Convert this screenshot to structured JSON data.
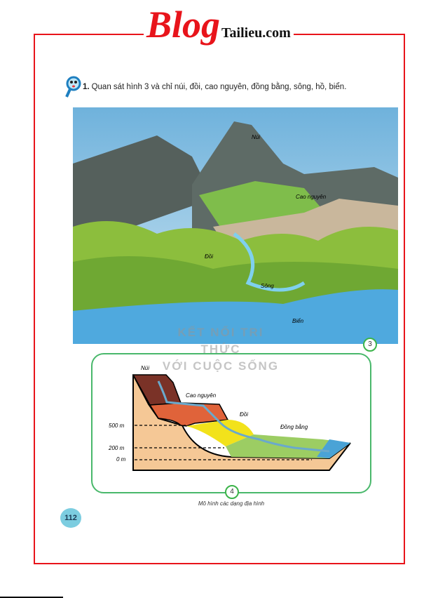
{
  "logo": {
    "blog": "Blog",
    "site": "Tailieu.com"
  },
  "question": {
    "number": "1.",
    "text": "Quan sát hình 3 và chỉ núi, đồi, cao nguyên, đồng bằng, sông, hồ, biển."
  },
  "figure3": {
    "labels": {
      "mountain": "Núi",
      "plateau": "Cao nguyên",
      "hill": "Đồi",
      "river": "Sông",
      "sea": "Biển"
    },
    "number": "3"
  },
  "watermark": {
    "line1": "KẾT NỐI TRI THỨC",
    "line2": "VỚI CUỘC SỐNG"
  },
  "figure4": {
    "labels": {
      "mountain": "Núi",
      "plateau": "Cao nguyên",
      "hill": "Đồi",
      "plain": "Đồng bằng"
    },
    "elevations": [
      "500 m",
      "200 m",
      "0 m"
    ],
    "number": "4",
    "caption": "Mô hình các dạng địa hình"
  },
  "page_number": "112"
}
